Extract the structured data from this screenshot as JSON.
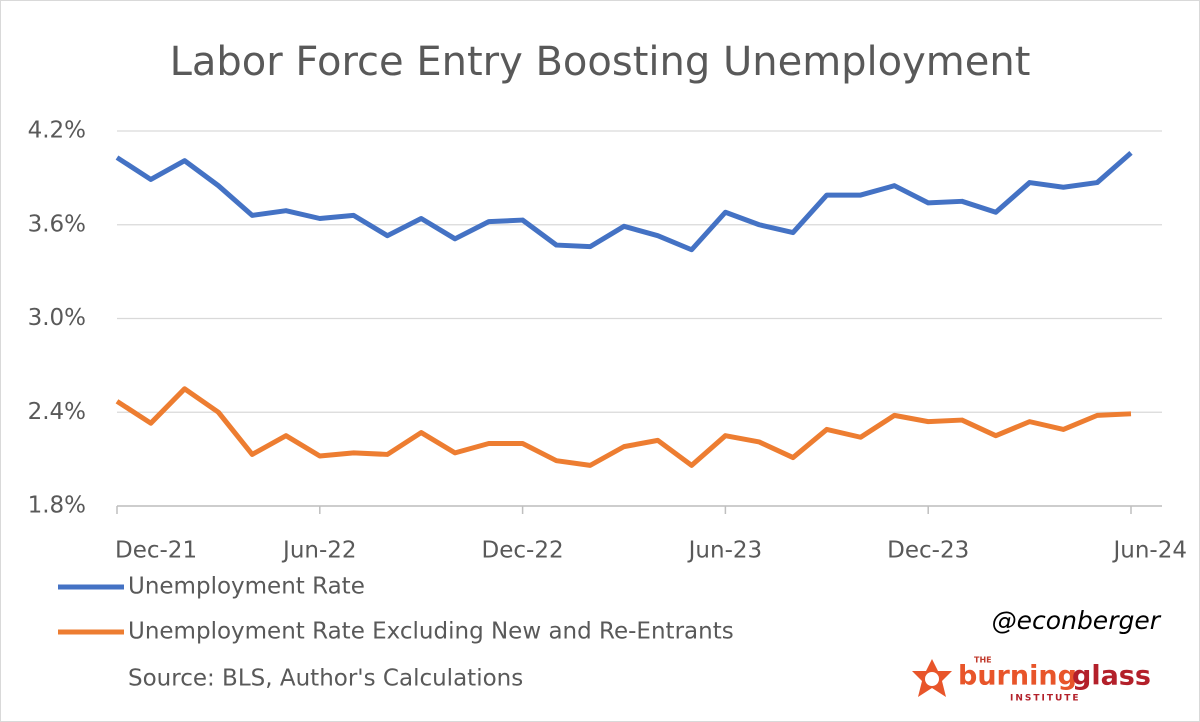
{
  "chart_data": {
    "type": "line",
    "title": "Labor Force Entry Boosting Unemployment",
    "categories": [
      "Dec-21",
      null,
      null,
      null,
      null,
      null,
      "Jun-22",
      null,
      null,
      null,
      null,
      null,
      "Dec-22",
      null,
      null,
      null,
      null,
      null,
      "Jun-23",
      null,
      null,
      null,
      null,
      null,
      "Dec-23",
      null,
      null,
      null,
      null,
      null,
      "Jun-24"
    ],
    "series": [
      {
        "name": "Unemployment Rate",
        "color": "#4472c4",
        "values": [
          4.03,
          3.89,
          4.01,
          3.85,
          3.66,
          3.69,
          3.64,
          3.66,
          3.53,
          3.64,
          3.51,
          3.62,
          3.63,
          3.47,
          3.46,
          3.59,
          3.53,
          3.44,
          3.68,
          3.6,
          3.55,
          3.79,
          3.79,
          3.85,
          3.74,
          3.75,
          3.68,
          3.87,
          3.84,
          3.87,
          4.06
        ]
      },
      {
        "name": "Unemployment Rate Excluding New and Re-Entrants",
        "color": "#ed7d31",
        "values": [
          2.47,
          2.33,
          2.55,
          2.4,
          2.13,
          2.25,
          2.12,
          2.14,
          2.13,
          2.27,
          2.14,
          2.2,
          2.2,
          2.09,
          2.06,
          2.18,
          2.22,
          2.06,
          2.25,
          2.21,
          2.11,
          2.29,
          2.24,
          2.38,
          2.34,
          2.35,
          2.25,
          2.34,
          2.29,
          2.38,
          2.39
        ]
      }
    ],
    "ylim": [
      1.8,
      4.2
    ],
    "yticks": [
      {
        "value": 1.8,
        "label": "1.8%"
      },
      {
        "value": 2.4,
        "label": "2.4%"
      },
      {
        "value": 3.0,
        "label": "3.0%"
      },
      {
        "value": 3.6,
        "label": "3.6%"
      },
      {
        "value": 4.2,
        "label": "4.2%"
      }
    ],
    "grid": true,
    "legend": "bottom",
    "source": "Source: BLS, Author's Calculations",
    "annotation": "@econberger",
    "logo": {
      "top": "THE",
      "part1": "burning",
      "part2": "glass",
      "sub": "INSTITUTE"
    }
  }
}
